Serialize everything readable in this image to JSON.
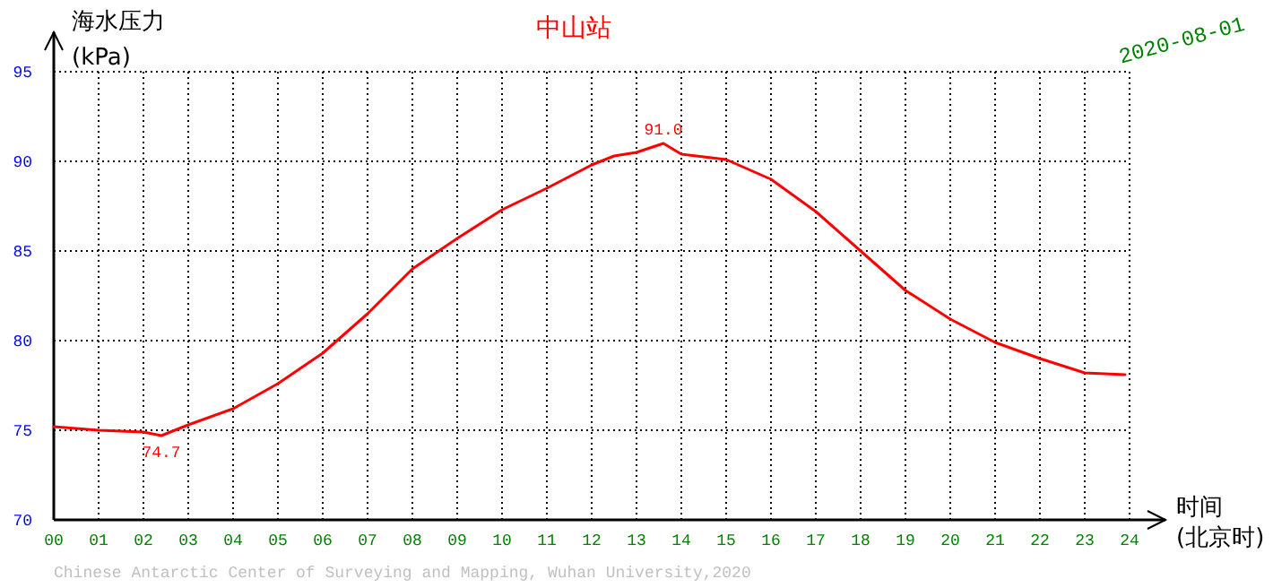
{
  "chart_data": {
    "type": "line",
    "title": "中山站",
    "subtitle": "2020-08-01",
    "xlabel": "时间\n(北京时)",
    "ylabel": "海水压力\n(kPa)",
    "x": [
      0,
      1,
      2,
      2.4,
      3,
      4,
      5,
      6,
      7,
      8,
      9,
      10,
      11,
      12,
      12.5,
      13,
      13.6,
      14,
      15,
      16,
      17,
      18,
      19,
      20,
      21,
      22,
      23,
      23.9
    ],
    "series": [
      {
        "color": "#ff0000",
        "values": [
          75.2,
          75.0,
          74.9,
          74.7,
          75.3,
          76.2,
          77.6,
          79.3,
          81.5,
          84.0,
          85.7,
          87.3,
          88.5,
          89.8,
          90.3,
          90.5,
          91.0,
          90.4,
          90.1,
          89.0,
          87.2,
          85.0,
          82.8,
          81.2,
          79.9,
          79.0,
          78.2,
          78.1
        ]
      }
    ],
    "xlim": [
      0,
      24
    ],
    "ylim": [
      70,
      95
    ],
    "xticks": [
      {
        "value": 0,
        "label": "00"
      },
      {
        "value": 1,
        "label": "01"
      },
      {
        "value": 2,
        "label": "02"
      },
      {
        "value": 3,
        "label": "03"
      },
      {
        "value": 4,
        "label": "04"
      },
      {
        "value": 5,
        "label": "05"
      },
      {
        "value": 6,
        "label": "06"
      },
      {
        "value": 7,
        "label": "07"
      },
      {
        "value": 8,
        "label": "08"
      },
      {
        "value": 9,
        "label": "09"
      },
      {
        "value": 10,
        "label": "10"
      },
      {
        "value": 11,
        "label": "11"
      },
      {
        "value": 12,
        "label": "12"
      },
      {
        "value": 13,
        "label": "13"
      },
      {
        "value": 14,
        "label": "14"
      },
      {
        "value": 15,
        "label": "15"
      },
      {
        "value": 16,
        "label": "16"
      },
      {
        "value": 17,
        "label": "17"
      },
      {
        "value": 18,
        "label": "18"
      },
      {
        "value": 19,
        "label": "19"
      },
      {
        "value": 20,
        "label": "20"
      },
      {
        "value": 21,
        "label": "21"
      },
      {
        "value": 22,
        "label": "22"
      },
      {
        "value": 23,
        "label": "23"
      },
      {
        "value": 24,
        "label": "24"
      }
    ],
    "yticks": [
      70,
      75,
      80,
      85,
      90,
      95
    ],
    "grid": true,
    "annotations": [
      {
        "text": "74.7",
        "x": 2.4,
        "y": 74.7
      },
      {
        "text": "91.0",
        "x": 13.6,
        "y": 91.0
      },
      "Chinese Antarctic Center of Surveying and Mapping, Wuhan University,2020"
    ]
  }
}
